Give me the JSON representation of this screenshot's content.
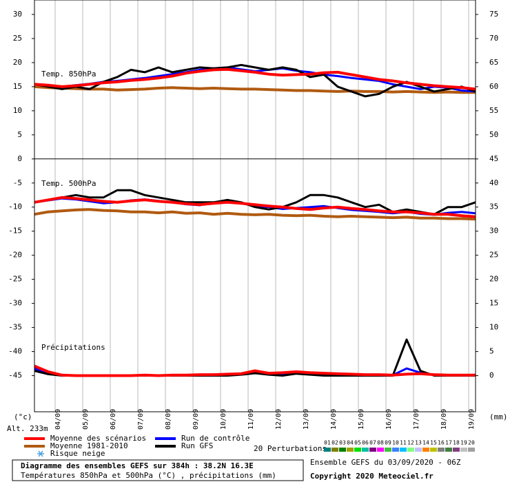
{
  "chart_data": {
    "type": "line",
    "title": "Diagramme des ensembles GEFS sur 384h : 38.2N 16.3E",
    "subtitle": "Températures 850hPa et 500hPa (°C) , précipitations (mm)",
    "run_info": "Ensemble GEFS du 03/09/2020 - 06Z",
    "copyright": "Copyright 2020 Meteociel.fr",
    "altitude": "Alt. 233m",
    "y_label": "(°c)",
    "y2_label": "(mm)",
    "panel_labels": {
      "t850": "Temp. 850hPa",
      "t500": "Temp. 500hPa",
      "precip": "Précipitations"
    },
    "snow_label": "Risque neige",
    "perturbations_label": "20 Perturbations",
    "perturbations": [
      {
        "name": "01",
        "color": "#008080"
      },
      {
        "name": "02",
        "color": "#808000"
      },
      {
        "name": "03",
        "color": "#008000"
      },
      {
        "name": "04",
        "color": "#a0a000"
      },
      {
        "name": "05",
        "color": "#00e000"
      },
      {
        "name": "06",
        "color": "#00c0a0"
      },
      {
        "name": "07",
        "color": "#800080"
      },
      {
        "name": "08",
        "color": "#ff00ff"
      },
      {
        "name": "09",
        "color": "#40c040"
      },
      {
        "name": "10",
        "color": "#4080ff"
      },
      {
        "name": "11",
        "color": "#00c0ff"
      },
      {
        "name": "12",
        "color": "#80ff80"
      },
      {
        "name": "13",
        "color": "#c0c0ff"
      },
      {
        "name": "14",
        "color": "#ff8000"
      },
      {
        "name": "15",
        "color": "#c0c000"
      },
      {
        "name": "16",
        "color": "#808080"
      },
      {
        "name": "17",
        "color": "#408040"
      },
      {
        "name": "18",
        "color": "#804080"
      },
      {
        "name": "19",
        "color": "#c0c0c0"
      },
      {
        "name": "20",
        "color": "#a0a0a0"
      }
    ],
    "x": [
      3.25,
      3.75,
      4.25,
      4.75,
      5.25,
      5.75,
      6.25,
      6.75,
      7.25,
      7.75,
      8.25,
      8.75,
      9.25,
      9.75,
      10.25,
      10.75,
      11.25,
      11.75,
      12.25,
      12.75,
      13.25,
      13.75,
      14.25,
      14.75,
      15.25,
      15.75,
      16.25,
      16.75,
      17.25,
      17.75,
      18.25,
      18.75,
      19.25
    ],
    "xlim": [
      3.25,
      19.25
    ],
    "xticks": [
      {
        "value": 4,
        "label": "04/09"
      },
      {
        "value": 5,
        "label": "05/09"
      },
      {
        "value": 6,
        "label": "06/09"
      },
      {
        "value": 7,
        "label": "07/09"
      },
      {
        "value": 8,
        "label": "08/09"
      },
      {
        "value": 9,
        "label": "09/09"
      },
      {
        "value": 10,
        "label": "10/09"
      },
      {
        "value": 11,
        "label": "11/09"
      },
      {
        "value": 12,
        "label": "12/09"
      },
      {
        "value": 13,
        "label": "13/09"
      },
      {
        "value": 14,
        "label": "14/09"
      },
      {
        "value": 15,
        "label": "15/09"
      },
      {
        "value": 16,
        "label": "16/09"
      },
      {
        "value": 17,
        "label": "17/09"
      },
      {
        "value": 18,
        "label": "18/09"
      },
      {
        "value": 19,
        "label": "19/09"
      }
    ],
    "ylim": [
      -52.5,
      33
    ],
    "yticks": [
      30,
      25,
      20,
      15,
      10,
      5,
      0,
      -5,
      -10,
      -15,
      -20,
      -25,
      -30,
      -35,
      -40,
      -45
    ],
    "y2lim": [
      -7.5,
      78
    ],
    "y2ticks": [
      75,
      70,
      65,
      60,
      55,
      50,
      45,
      40,
      35,
      30,
      25,
      20,
      15,
      10,
      5,
      0
    ],
    "panel_divider": 0,
    "series": [
      {
        "name": "Moyenne des scénarios",
        "color": "#ff0000",
        "t850": [
          15.5,
          15.3,
          15,
          15.2,
          15.5,
          15.8,
          16,
          16.3,
          16.5,
          16.8,
          17.2,
          17.8,
          18.2,
          18.5,
          18.6,
          18.3,
          18,
          17.6,
          17.4,
          17.5,
          17.6,
          17.9,
          18,
          17.5,
          17,
          16.5,
          16.2,
          15.8,
          15.5,
          15.2,
          15,
          14.8,
          14.5
        ],
        "t500": [
          -9,
          -8.5,
          -8,
          -8.2,
          -8.5,
          -8.8,
          -9,
          -8.7,
          -8.5,
          -8.8,
          -9,
          -9.3,
          -9.5,
          -9.2,
          -9,
          -9.2,
          -9.5,
          -9.8,
          -10,
          -10.3,
          -10.5,
          -10.2,
          -10,
          -10.3,
          -10.5,
          -10.8,
          -11,
          -11,
          -11.2,
          -11.5,
          -11.5,
          -11.8,
          -12
        ],
        "precip": [
          2,
          0.8,
          0.1,
          0,
          0,
          0,
          0,
          0,
          0.1,
          0,
          0.1,
          0.1,
          0.2,
          0.2,
          0.3,
          0.4,
          1,
          0.5,
          0.6,
          0.8,
          0.6,
          0.5,
          0.4,
          0.3,
          0.2,
          0.2,
          0.1,
          0.3,
          0.4,
          0.2,
          0.1,
          0.1,
          0.1
        ]
      },
      {
        "name": "Moyenne 1981-2010",
        "color": "#b05a10",
        "t850": [
          15,
          14.8,
          14.7,
          14.6,
          14.5,
          14.5,
          14.3,
          14.4,
          14.5,
          14.7,
          14.8,
          14.7,
          14.6,
          14.7,
          14.6,
          14.5,
          14.5,
          14.4,
          14.3,
          14.2,
          14.2,
          14.1,
          14,
          14.1,
          14,
          14,
          13.9,
          14,
          13.9,
          13.8,
          13.9,
          13.8,
          13.8
        ],
        "t500": [
          -11.5,
          -11,
          -10.8,
          -10.6,
          -10.5,
          -10.7,
          -10.8,
          -11,
          -11,
          -11.2,
          -11,
          -11.3,
          -11.2,
          -11.5,
          -11.3,
          -11.5,
          -11.6,
          -11.5,
          -11.7,
          -11.8,
          -11.7,
          -11.9,
          -12,
          -11.9,
          -12,
          -12.1,
          -12.2,
          -12.1,
          -12.3,
          -12.3,
          -12.4,
          -12.4,
          -12.5
        ]
      },
      {
        "name": "Run de contrôle",
        "color": "#0000ff",
        "t850": [
          15.5,
          15.2,
          15,
          15.3,
          15.6,
          16,
          16.2,
          16.5,
          16.8,
          17.2,
          17.6,
          18,
          18.5,
          18.8,
          19,
          18.6,
          18.2,
          18.5,
          18.8,
          18.3,
          18,
          17.5,
          17.2,
          16.8,
          16.5,
          16.2,
          15.5,
          15,
          14.5,
          15,
          14.8,
          14.2,
          14
        ],
        "t500": [
          -9,
          -8.6,
          -8.2,
          -8.4,
          -8.8,
          -9.2,
          -9,
          -8.6,
          -8.4,
          -8.7,
          -9,
          -9.4,
          -9.6,
          -9,
          -8.8,
          -9.2,
          -9.8,
          -10,
          -10.4,
          -10.2,
          -10,
          -9.8,
          -10.2,
          -10.6,
          -10.8,
          -11,
          -11.3,
          -11,
          -11.4,
          -11.6,
          -11.2,
          -11,
          -11.3
        ],
        "precip": [
          1.5,
          0.5,
          0,
          0,
          0,
          0,
          0,
          0,
          0,
          0,
          0,
          0.1,
          0.1,
          0.1,
          0.2,
          0.3,
          0.8,
          0.5,
          0.3,
          0.6,
          0.4,
          0.3,
          0.2,
          0.2,
          0.1,
          0.1,
          0.1,
          1.5,
          0.6,
          0.2,
          0.1,
          0,
          0
        ]
      },
      {
        "name": "Run GFS",
        "color": "#000000",
        "t850": [
          15.5,
          15,
          14.5,
          15,
          14.5,
          16,
          17,
          18.5,
          18,
          19,
          18,
          18.5,
          19,
          18.8,
          19,
          19.5,
          19,
          18.5,
          19,
          18.5,
          17,
          17.5,
          15,
          14,
          13,
          13.5,
          15,
          16,
          15,
          14,
          14.5,
          15,
          14
        ],
        "t500": [
          -9,
          -8.5,
          -8,
          -7.5,
          -8,
          -8,
          -6.5,
          -6.5,
          -7.5,
          -8,
          -8.5,
          -9,
          -9,
          -9,
          -8.5,
          -9,
          -10,
          -10.5,
          -10,
          -9,
          -7.5,
          -7.5,
          -8,
          -9,
          -10,
          -9.5,
          -11,
          -10.5,
          -11,
          -11.5,
          -10,
          -10,
          -9
        ],
        "precip": [
          1,
          0.3,
          0,
          0,
          0,
          0,
          0,
          0,
          0,
          0,
          0,
          0,
          0,
          0,
          0,
          0.2,
          0.5,
          0.2,
          0,
          0.4,
          0.2,
          0,
          0,
          0,
          0,
          0,
          0,
          7.5,
          1,
          0,
          0,
          0,
          0
        ]
      }
    ]
  }
}
